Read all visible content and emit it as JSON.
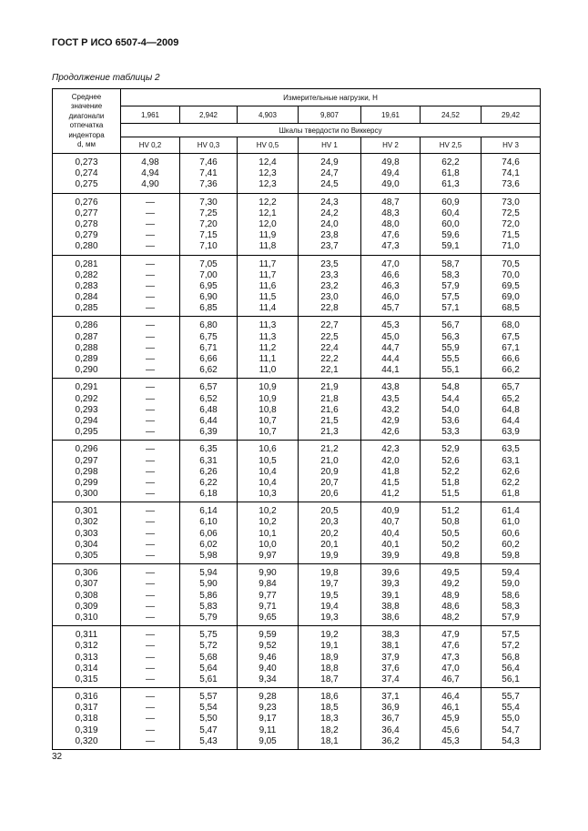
{
  "header": {
    "title": "ГОСТ Р ИСО 6507-4—2009"
  },
  "caption": "Продолжение таблицы 2",
  "table": {
    "first_column_header": [
      "Среднее",
      "значение",
      "диагонали",
      "отпечатка",
      "индентора",
      "d, мм"
    ],
    "loads_header": "Измерительные нагрузки, Н",
    "loads": [
      "1,961",
      "2,942",
      "4,903",
      "9,807",
      "19,61",
      "24,52",
      "29,42"
    ],
    "scales_header": "Шкалы твердости по Виккерсу",
    "scales": [
      "HV 0,2",
      "HV 0,3",
      "HV 0,5",
      "HV 1",
      "HV 2",
      "HV 2,5",
      "HV 3"
    ],
    "groups": [
      {
        "rows": [
          [
            "0,273",
            "4,98",
            "7,46",
            "12,4",
            "24,9",
            "49,8",
            "62,2",
            "74,6"
          ],
          [
            "0,274",
            "4,94",
            "7,41",
            "12,3",
            "24,7",
            "49,4",
            "61,8",
            "74,1"
          ],
          [
            "0,275",
            "4,90",
            "7,36",
            "12,3",
            "24,5",
            "49,0",
            "61,3",
            "73,6"
          ]
        ]
      },
      {
        "rows": [
          [
            "0,276",
            "—",
            "7,30",
            "12,2",
            "24,3",
            "48,7",
            "60,9",
            "73,0"
          ],
          [
            "0,277",
            "—",
            "7,25",
            "12,1",
            "24,2",
            "48,3",
            "60,4",
            "72,5"
          ],
          [
            "0,278",
            "—",
            "7,20",
            "12,0",
            "24,0",
            "48,0",
            "60,0",
            "72,0"
          ],
          [
            "0,279",
            "—",
            "7,15",
            "11,9",
            "23,8",
            "47,6",
            "59,6",
            "71,5"
          ],
          [
            "0,280",
            "—",
            "7,10",
            "11,8",
            "23,7",
            "47,3",
            "59,1",
            "71,0"
          ]
        ]
      },
      {
        "rows": [
          [
            "0,281",
            "—",
            "7,05",
            "11,7",
            "23,5",
            "47,0",
            "58,7",
            "70,5"
          ],
          [
            "0,282",
            "—",
            "7,00",
            "11,7",
            "23,3",
            "46,6",
            "58,3",
            "70,0"
          ],
          [
            "0,283",
            "—",
            "6,95",
            "11,6",
            "23,2",
            "46,3",
            "57,9",
            "69,5"
          ],
          [
            "0,284",
            "—",
            "6,90",
            "11,5",
            "23,0",
            "46,0",
            "57,5",
            "69,0"
          ],
          [
            "0,285",
            "—",
            "6,85",
            "11,4",
            "22,8",
            "45,7",
            "57,1",
            "68,5"
          ]
        ]
      },
      {
        "rows": [
          [
            "0,286",
            "—",
            "6,80",
            "11,3",
            "22,7",
            "45,3",
            "56,7",
            "68,0"
          ],
          [
            "0,287",
            "—",
            "6,75",
            "11,3",
            "22,5",
            "45,0",
            "56,3",
            "67,5"
          ],
          [
            "0,288",
            "—",
            "6,71",
            "11,2",
            "22,4",
            "44,7",
            "55,9",
            "67,1"
          ],
          [
            "0,289",
            "—",
            "6,66",
            "11,1",
            "22,2",
            "44,4",
            "55,5",
            "66,6"
          ],
          [
            "0,290",
            "—",
            "6,62",
            "11,0",
            "22,1",
            "44,1",
            "55,1",
            "66,2"
          ]
        ]
      },
      {
        "rows": [
          [
            "0,291",
            "—",
            "6,57",
            "10,9",
            "21,9",
            "43,8",
            "54,8",
            "65,7"
          ],
          [
            "0,292",
            "—",
            "6,52",
            "10,9",
            "21,8",
            "43,5",
            "54,4",
            "65,2"
          ],
          [
            "0,293",
            "—",
            "6,48",
            "10,8",
            "21,6",
            "43,2",
            "54,0",
            "64,8"
          ],
          [
            "0,294",
            "—",
            "6,44",
            "10,7",
            "21,5",
            "42,9",
            "53,6",
            "64,4"
          ],
          [
            "0,295",
            "—",
            "6,39",
            "10,7",
            "21,3",
            "42,6",
            "53,3",
            "63,9"
          ]
        ]
      },
      {
        "rows": [
          [
            "0,296",
            "—",
            "6,35",
            "10,6",
            "21,2",
            "42,3",
            "52,9",
            "63,5"
          ],
          [
            "0,297",
            "—",
            "6,31",
            "10,5",
            "21,0",
            "42,0",
            "52,6",
            "63,1"
          ],
          [
            "0,298",
            "—",
            "6,26",
            "10,4",
            "20,9",
            "41,8",
            "52,2",
            "62,6"
          ],
          [
            "0,299",
            "—",
            "6,22",
            "10,4",
            "20,7",
            "41,5",
            "51,8",
            "62,2"
          ],
          [
            "0,300",
            "—",
            "6,18",
            "10,3",
            "20,6",
            "41,2",
            "51,5",
            "61,8"
          ]
        ]
      },
      {
        "rows": [
          [
            "0,301",
            "—",
            "6,14",
            "10,2",
            "20,5",
            "40,9",
            "51,2",
            "61,4"
          ],
          [
            "0,302",
            "—",
            "6,10",
            "10,2",
            "20,3",
            "40,7",
            "50,8",
            "61,0"
          ],
          [
            "0,303",
            "—",
            "6,06",
            "10,1",
            "20,2",
            "40,4",
            "50,5",
            "60,6"
          ],
          [
            "0,304",
            "—",
            "6,02",
            "10,0",
            "20,1",
            "40,1",
            "50,2",
            "60,2"
          ],
          [
            "0,305",
            "—",
            "5,98",
            "9,97",
            "19,9",
            "39,9",
            "49,8",
            "59,8"
          ]
        ]
      },
      {
        "rows": [
          [
            "0,306",
            "—",
            "5,94",
            "9,90",
            "19,8",
            "39,6",
            "49,5",
            "59,4"
          ],
          [
            "0,307",
            "—",
            "5,90",
            "9,84",
            "19,7",
            "39,3",
            "49,2",
            "59,0"
          ],
          [
            "0,308",
            "—",
            "5,86",
            "9,77",
            "19,5",
            "39,1",
            "48,9",
            "58,6"
          ],
          [
            "0,309",
            "—",
            "5,83",
            "9,71",
            "19,4",
            "38,8",
            "48,6",
            "58,3"
          ],
          [
            "0,310",
            "—",
            "5,79",
            "9,65",
            "19,3",
            "38,6",
            "48,2",
            "57,9"
          ]
        ]
      },
      {
        "rows": [
          [
            "0,311",
            "—",
            "5,75",
            "9,59",
            "19,2",
            "38,3",
            "47,9",
            "57,5"
          ],
          [
            "0,312",
            "—",
            "5,72",
            "9,52",
            "19,1",
            "38,1",
            "47,6",
            "57,2"
          ],
          [
            "0,313",
            "—",
            "5,68",
            "9,46",
            "18,9",
            "37,9",
            "47,3",
            "56,8"
          ],
          [
            "0,314",
            "—",
            "5,64",
            "9,40",
            "18,8",
            "37,6",
            "47,0",
            "56,4"
          ],
          [
            "0,315",
            "—",
            "5,61",
            "9,34",
            "18,7",
            "37,4",
            "46,7",
            "56,1"
          ]
        ]
      },
      {
        "rows": [
          [
            "0,316",
            "—",
            "5,57",
            "9,28",
            "18,6",
            "37,1",
            "46,4",
            "55,7"
          ],
          [
            "0,317",
            "—",
            "5,54",
            "9,23",
            "18,5",
            "36,9",
            "46,1",
            "55,4"
          ],
          [
            "0,318",
            "—",
            "5,50",
            "9,17",
            "18,3",
            "36,7",
            "45,9",
            "55,0"
          ],
          [
            "0,319",
            "—",
            "5,47",
            "9,11",
            "18,2",
            "36,4",
            "45,6",
            "54,7"
          ],
          [
            "0,320",
            "—",
            "5,43",
            "9,05",
            "18,1",
            "36,2",
            "45,3",
            "54,3"
          ]
        ]
      }
    ]
  },
  "page_number": "32"
}
